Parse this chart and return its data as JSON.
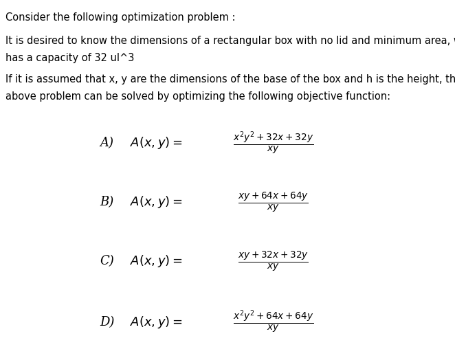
{
  "background_color": "#ffffff",
  "title_text": "Consider the following optimization problem :",
  "para1_line1": "It is desired to know the dimensions of a rectangular box with no lid and minimum area, which",
  "para1_line2": "has a capacity of 32 ul^3",
  "para2_line1": "If it is assumed that x, y are the dimensions of the base of the box and h is the height, then the",
  "para2_line2": "above problem can be solved by optimizing the following objective function:",
  "options": [
    {
      "label": "A)",
      "expr": "\\frac{x^2y^2 + 32x + 32y}{xy}"
    },
    {
      "label": "B)",
      "expr": "\\frac{xy + 64x + 64y}{xy}"
    },
    {
      "label": "C)",
      "expr": "\\frac{xy + 32x + 32y}{xy}"
    },
    {
      "label": "D)",
      "expr": "\\frac{x^2y^2 + 64x + 64y}{xy}"
    }
  ],
  "font_size_body": 10.5,
  "font_size_math": 14,
  "font_size_label": 13
}
